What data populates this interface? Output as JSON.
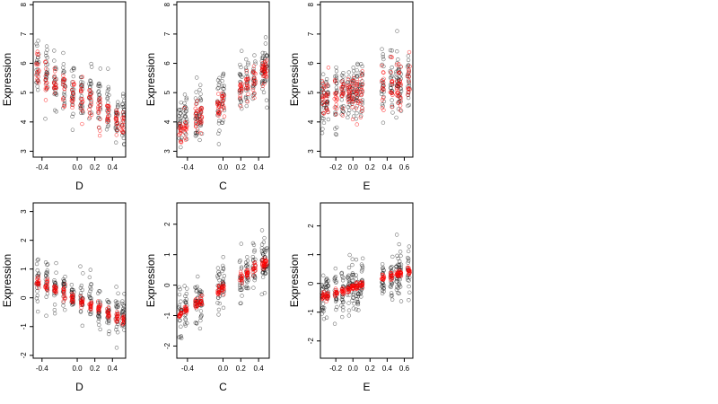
{
  "chart_data": [
    {
      "type": "scatter",
      "xlabel": "D",
      "ylabel": "Expression",
      "xlim": [
        -0.5,
        0.55
      ],
      "ylim": [
        2.8,
        8.1
      ],
      "xticks": [
        -0.4,
        0.0,
        0.2,
        0.4
      ],
      "xtick_labels": [
        "-0.4",
        "0.0",
        "0.2",
        "0.4"
      ],
      "yticks": [
        3,
        4,
        5,
        6,
        7,
        8
      ],
      "ytick_labels": [
        "3",
        "4",
        "5",
        "6",
        "7",
        "8"
      ],
      "x_clusters": [
        -0.45,
        -0.35,
        -0.25,
        -0.15,
        -0.05,
        0.05,
        0.15,
        0.25,
        0.35,
        0.45,
        0.52
      ],
      "series": [
        {
          "role": "observed",
          "color": "#000000",
          "trend": {
            "intercept": 5.0,
            "slope": -1.6
          },
          "spread": 0.9
        },
        {
          "role": "fitted",
          "color": "#ff0000",
          "trend": {
            "intercept": 4.9,
            "slope": -1.8
          },
          "spread": 0.55
        }
      ]
    },
    {
      "type": "scatter",
      "xlabel": "C",
      "ylabel": "Expression",
      "xlim": [
        -0.52,
        0.52
      ],
      "ylim": [
        2.8,
        8.1
      ],
      "xticks": [
        -0.4,
        0.0,
        0.2,
        0.4
      ],
      "xtick_labels": [
        "-0.4",
        "0.0",
        "0.2",
        "0.4"
      ],
      "yticks": [
        3,
        4,
        5,
        6,
        7,
        8
      ],
      "ytick_labels": [
        "3",
        "4",
        "5",
        "6",
        "7",
        "8"
      ],
      "x_clusters": [
        -0.48,
        -0.42,
        -0.3,
        -0.25,
        -0.05,
        0.0,
        0.2,
        0.27,
        0.35,
        0.45,
        0.48
      ],
      "series": [
        {
          "role": "observed",
          "color": "#000000",
          "trend": {
            "intercept": 4.8,
            "slope": 2.0
          },
          "spread": 0.85
        },
        {
          "role": "fitted",
          "color": "#ff0000",
          "trend": {
            "intercept": 4.75,
            "slope": 2.1
          },
          "spread": 0.45
        }
      ]
    },
    {
      "type": "scatter",
      "xlabel": "E",
      "ylabel": "Expression",
      "xlim": [
        -0.38,
        0.7
      ],
      "ylim": [
        2.8,
        8.1
      ],
      "xticks": [
        -0.2,
        0.0,
        0.2,
        0.4,
        0.6
      ],
      "xtick_labels": [
        "-0.2",
        "0.0",
        "0.2",
        "0.4",
        "0.6"
      ],
      "yticks": [
        3,
        4,
        5,
        6,
        7,
        8
      ],
      "ytick_labels": [
        "3",
        "4",
        "5",
        "6",
        "7",
        "8"
      ],
      "x_clusters": [
        -0.35,
        -0.3,
        -0.2,
        -0.12,
        -0.05,
        0.0,
        0.05,
        0.1,
        0.35,
        0.45,
        0.52,
        0.55,
        0.65
      ],
      "series": [
        {
          "role": "observed",
          "color": "#000000",
          "trend": {
            "intercept": 5.0,
            "slope": 0.5
          },
          "spread": 0.95
        },
        {
          "role": "fitted",
          "color": "#ff0000",
          "trend": {
            "intercept": 5.0,
            "slope": 0.6
          },
          "spread": 0.7
        }
      ]
    },
    {
      "type": "scatter",
      "xlabel": "D",
      "ylabel": "Expression",
      "xlim": [
        -0.5,
        0.55
      ],
      "ylim": [
        -2.1,
        3.3
      ],
      "xticks": [
        -0.4,
        0.0,
        0.2,
        0.4
      ],
      "xtick_labels": [
        "-0.4",
        "0.0",
        "0.2",
        "0.4"
      ],
      "yticks": [
        -2,
        -1,
        0,
        1,
        2,
        3
      ],
      "ytick_labels": [
        "-2",
        "-1",
        "0",
        "1",
        "2",
        "3"
      ],
      "x_clusters": [
        -0.45,
        -0.35,
        -0.25,
        -0.15,
        -0.05,
        0.05,
        0.15,
        0.25,
        0.35,
        0.45,
        0.52
      ],
      "series": [
        {
          "role": "observed",
          "color": "#000000",
          "trend": {
            "intercept": 0.0,
            "slope": -1.3
          },
          "spread": 0.7
        },
        {
          "role": "fitted",
          "color": "#ff0000",
          "trend": {
            "intercept": -0.05,
            "slope": -1.35
          },
          "spread": 0.18
        }
      ]
    },
    {
      "type": "scatter",
      "xlabel": "C",
      "ylabel": "Expression",
      "xlim": [
        -0.52,
        0.52
      ],
      "ylim": [
        -2.4,
        2.7
      ],
      "xticks": [
        -0.4,
        0.0,
        0.2,
        0.4
      ],
      "xtick_labels": [
        "-0.4",
        "0.0",
        "0.2",
        "0.4"
      ],
      "yticks": [
        -2,
        -1,
        0,
        1,
        2
      ],
      "ytick_labels": [
        "-2",
        "-1",
        "0",
        "1",
        "2"
      ],
      "x_clusters": [
        -0.48,
        -0.42,
        -0.3,
        -0.25,
        -0.05,
        0.0,
        0.2,
        0.27,
        0.35,
        0.45,
        0.48
      ],
      "series": [
        {
          "role": "observed",
          "color": "#000000",
          "trend": {
            "intercept": -0.05,
            "slope": 1.8
          },
          "spread": 0.75
        },
        {
          "role": "fitted",
          "color": "#ff0000",
          "trend": {
            "intercept": -0.1,
            "slope": 1.75
          },
          "spread": 0.15
        }
      ]
    },
    {
      "type": "scatter",
      "xlabel": "E",
      "ylabel": "Expression",
      "xlim": [
        -0.38,
        0.7
      ],
      "ylim": [
        -2.6,
        2.8
      ],
      "xticks": [
        -0.2,
        0.0,
        0.2,
        0.4,
        0.6
      ],
      "xtick_labels": [
        "-0.2",
        "0.0",
        "0.2",
        "0.4",
        "0.6"
      ],
      "yticks": [
        -2,
        -1,
        0,
        1,
        2
      ],
      "ytick_labels": [
        "-2",
        "-1",
        "0",
        "1",
        "2"
      ],
      "x_clusters": [
        -0.35,
        -0.3,
        -0.2,
        -0.12,
        -0.05,
        0.0,
        0.05,
        0.1,
        0.35,
        0.45,
        0.52,
        0.55,
        0.65
      ],
      "series": [
        {
          "role": "observed",
          "color": "#000000",
          "trend": {
            "intercept": -0.15,
            "slope": 0.85
          },
          "spread": 0.75
        },
        {
          "role": "fitted",
          "color": "#ff0000",
          "trend": {
            "intercept": -0.15,
            "slope": 0.9
          },
          "spread": 0.12
        }
      ]
    }
  ]
}
